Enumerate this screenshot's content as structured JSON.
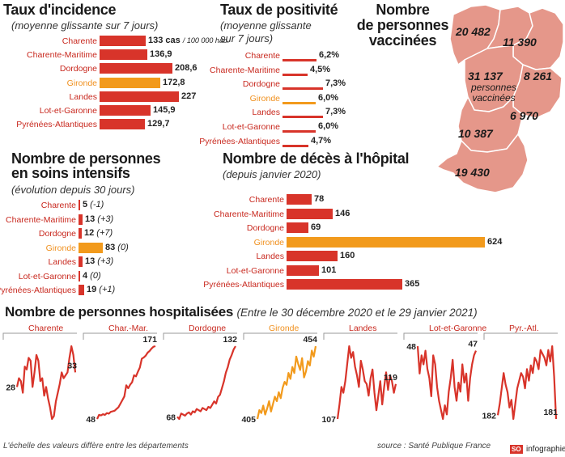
{
  "incidence": {
    "title": "Taux d'incidence",
    "subtitle": "(moyenne glissante sur 7 jours)",
    "unit": "cas",
    "unit_note": "/ 100 000 hab.",
    "rows": [
      {
        "name": "Charente",
        "value": 133,
        "label": "133"
      },
      {
        "name": "Charente-Maritime",
        "value": 136.9,
        "label": "136,9"
      },
      {
        "name": "Dordogne",
        "value": 208.6,
        "label": "208,6"
      },
      {
        "name": "Gironde",
        "value": 172.8,
        "label": "172,8",
        "highlight": true
      },
      {
        "name": "Landes",
        "value": 227,
        "label": "227"
      },
      {
        "name": "Lot-et-Garonne",
        "value": 145.9,
        "label": "145,9"
      },
      {
        "name": "Pyrénées-Atlantiques",
        "value": 129.7,
        "label": "129,7"
      }
    ]
  },
  "positivite": {
    "title": "Taux de positivité",
    "subtitle_1": "(moyenne glissante",
    "subtitle_2": "sur 7 jours)",
    "rows": [
      {
        "name": "Charente",
        "value": 6.2,
        "label": "6,2%"
      },
      {
        "name": "Charente-Maritime",
        "value": 4.5,
        "label": "4,5%"
      },
      {
        "name": "Dordogne",
        "value": 7.3,
        "label": "7,3%"
      },
      {
        "name": "Gironde",
        "value": 6.0,
        "label": "6,0%",
        "highlight": true
      },
      {
        "name": "Landes",
        "value": 7.3,
        "label": "7,3%"
      },
      {
        "name": "Lot-et-Garonne",
        "value": 6.0,
        "label": "6,0%"
      },
      {
        "name": "Pyrénées-Atlantiques",
        "value": 4.7,
        "label": "4,7%"
      }
    ]
  },
  "vaccines": {
    "title_1": "Nombre",
    "title_2": "de personnes",
    "title_3": "vaccinées",
    "center_caption_1": "personnes",
    "center_caption_2": "vaccinées",
    "values": {
      "charente_maritime": "20 482",
      "charente": "11 390",
      "gironde": "31 137",
      "dordogne": "8 261",
      "lot_et_garonne": "6 970",
      "landes": "10 387",
      "pyrenees_atlantiques": "19 430"
    },
    "map_color": "#e5978a",
    "border_color": "#ffffff"
  },
  "soins": {
    "title_1": "Nombre de personnes",
    "title_2": "en soins intensifs",
    "subtitle": "(évolution depuis 30 jours)",
    "rows": [
      {
        "name": "Charente",
        "value": 5,
        "label": "5",
        "delta": "(-1)"
      },
      {
        "name": "Charente-Maritime",
        "value": 13,
        "label": "13",
        "delta": "(+3)"
      },
      {
        "name": "Dordogne",
        "value": 12,
        "label": "12",
        "delta": "(+7)"
      },
      {
        "name": "Gironde",
        "value": 83,
        "label": "83",
        "delta": "(0)",
        "highlight": true
      },
      {
        "name": "Landes",
        "value": 13,
        "label": "13",
        "delta": "(+3)"
      },
      {
        "name": "Lot-et-Garonne",
        "value": 4,
        "label": "4",
        "delta": "(0)"
      },
      {
        "name": "Pyrénées-Atlantiques",
        "value": 19,
        "label": "19",
        "delta": "(+1)"
      }
    ]
  },
  "deces": {
    "title": "Nombre de décès à l'hôpital",
    "subtitle": "(depuis janvier 2020)",
    "rows": [
      {
        "name": "Charente",
        "value": 78,
        "label": "78"
      },
      {
        "name": "Charente-Maritime",
        "value": 146,
        "label": "146"
      },
      {
        "name": "Dordogne",
        "value": 69,
        "label": "69"
      },
      {
        "name": "Gironde",
        "value": 624,
        "label": "624",
        "highlight": true
      },
      {
        "name": "Landes",
        "value": 160,
        "label": "160"
      },
      {
        "name": "Lot-et-Garonne",
        "value": 101,
        "label": "101"
      },
      {
        "name": "Pyrénées-Atlantiques",
        "value": 365,
        "label": "365"
      }
    ]
  },
  "hospitalisees": {
    "title": "Nombre de personnes hospitalisées",
    "subtitle": "(Entre le 30 décembre 2020 et le 29 janvier 2021)",
    "note": "L'échelle des valeurs diffère entre les départements",
    "source": "source : Santé Publique France",
    "brand_logo": "SO",
    "brand": "infographie"
  },
  "chart_data": [
    {
      "type": "bar",
      "title": "Taux d'incidence",
      "categories": [
        "Charente",
        "Charente-Maritime",
        "Dordogne",
        "Gironde",
        "Landes",
        "Lot-et-Garonne",
        "Pyrénées-Atlantiques"
      ],
      "values": [
        133,
        136.9,
        208.6,
        172.8,
        227,
        145.9,
        129.7
      ],
      "xlabel": "cas / 100 000 hab.",
      "ylabel": ""
    },
    {
      "type": "bar",
      "title": "Taux de positivité",
      "categories": [
        "Charente",
        "Charente-Maritime",
        "Dordogne",
        "Gironde",
        "Landes",
        "Lot-et-Garonne",
        "Pyrénées-Atlantiques"
      ],
      "values": [
        6.2,
        4.5,
        7.3,
        6.0,
        7.3,
        6.0,
        4.7
      ],
      "xlabel": "%",
      "ylabel": ""
    },
    {
      "type": "bar",
      "title": "Nombre de personnes en soins intensifs",
      "categories": [
        "Charente",
        "Charente-Maritime",
        "Dordogne",
        "Gironde",
        "Landes",
        "Lot-et-Garonne",
        "Pyrénées-Atlantiques"
      ],
      "values": [
        5,
        13,
        12,
        83,
        13,
        4,
        19
      ],
      "xlabel": "",
      "ylabel": ""
    },
    {
      "type": "bar",
      "title": "Nombre de décès à l'hôpital",
      "categories": [
        "Charente",
        "Charente-Maritime",
        "Dordogne",
        "Gironde",
        "Landes",
        "Lot-et-Garonne",
        "Pyrénées-Atlantiques"
      ],
      "values": [
        78,
        146,
        69,
        624,
        160,
        101,
        365
      ],
      "xlabel": "",
      "ylabel": ""
    },
    {
      "type": "line",
      "title": "Nombre de personnes hospitalisées",
      "series": [
        {
          "name": "Charente",
          "start_label": "28",
          "end_label": "33",
          "highlight": false,
          "values": [
            28,
            31,
            30,
            26,
            35,
            34,
            38,
            37,
            28,
            33,
            39,
            37,
            30,
            31,
            25,
            28,
            24,
            21,
            17,
            18,
            23,
            26,
            29,
            33,
            31,
            32,
            33,
            38,
            42,
            39,
            33
          ]
        },
        {
          "name": "Char.-Mar.",
          "start_label": "48",
          "end_label": "171",
          "highlight": false,
          "values": [
            48,
            55,
            54,
            56,
            55,
            58,
            57,
            60,
            61,
            62,
            65,
            68,
            74,
            80,
            86,
            105,
            100,
            106,
            110,
            122,
            120,
            128,
            135,
            150,
            152,
            155,
            160,
            163,
            167,
            170,
            171
          ]
        },
        {
          "name": "Dordogne",
          "start_label": "68",
          "end_label": "132",
          "highlight": false,
          "values": [
            68,
            66,
            71,
            70,
            69,
            71,
            72,
            70,
            73,
            72,
            75,
            74,
            73,
            76,
            75,
            74,
            77,
            76,
            79,
            82,
            80,
            86,
            88,
            94,
            100,
            108,
            113,
            120,
            124,
            129,
            132
          ]
        },
        {
          "name": "Gironde",
          "start_label": "405",
          "end_label": "454",
          "highlight": true,
          "values": [
            405,
            411,
            409,
            414,
            408,
            412,
            417,
            410,
            415,
            420,
            417,
            423,
            419,
            426,
            430,
            428,
            436,
            432,
            440,
            436,
            447,
            442,
            438,
            446,
            433,
            437,
            444,
            441,
            451,
            447,
            454
          ]
        },
        {
          "name": "Landes",
          "start_label": "107",
          "end_label": "119",
          "highlight": false,
          "values": [
            107,
            112,
            118,
            116,
            120,
            126,
            132,
            128,
            130,
            125,
            122,
            118,
            127,
            124,
            120,
            119,
            115,
            121,
            124,
            116,
            110,
            115,
            120,
            112,
            118,
            123,
            117,
            122,
            120,
            116,
            119
          ]
        },
        {
          "name": "Lot-et-Garonne",
          "start_label": "48",
          "end_label": "47",
          "highlight": false,
          "values": [
            48,
            42,
            46,
            44,
            47,
            43,
            41,
            37,
            46,
            44,
            39,
            36,
            34,
            32,
            35,
            33,
            38,
            41,
            45,
            39,
            36,
            40,
            38,
            44,
            40,
            42,
            36,
            41,
            44,
            46,
            47
          ]
        },
        {
          "name": "Pyr.-Atl.",
          "start_label": "182",
          "end_label": "181",
          "highlight": false,
          "values": [
            182,
            185,
            189,
            193,
            190,
            188,
            184,
            186,
            181,
            185,
            189,
            191,
            193,
            192,
            189,
            194,
            191,
            195,
            193,
            197,
            196,
            194,
            199,
            198,
            197,
            195,
            199,
            196,
            200,
            192,
            181
          ]
        }
      ],
      "xlabel": "",
      "ylabel": "",
      "x_range": [
        "30 décembre 2020",
        "29 janvier 2021"
      ]
    }
  ]
}
